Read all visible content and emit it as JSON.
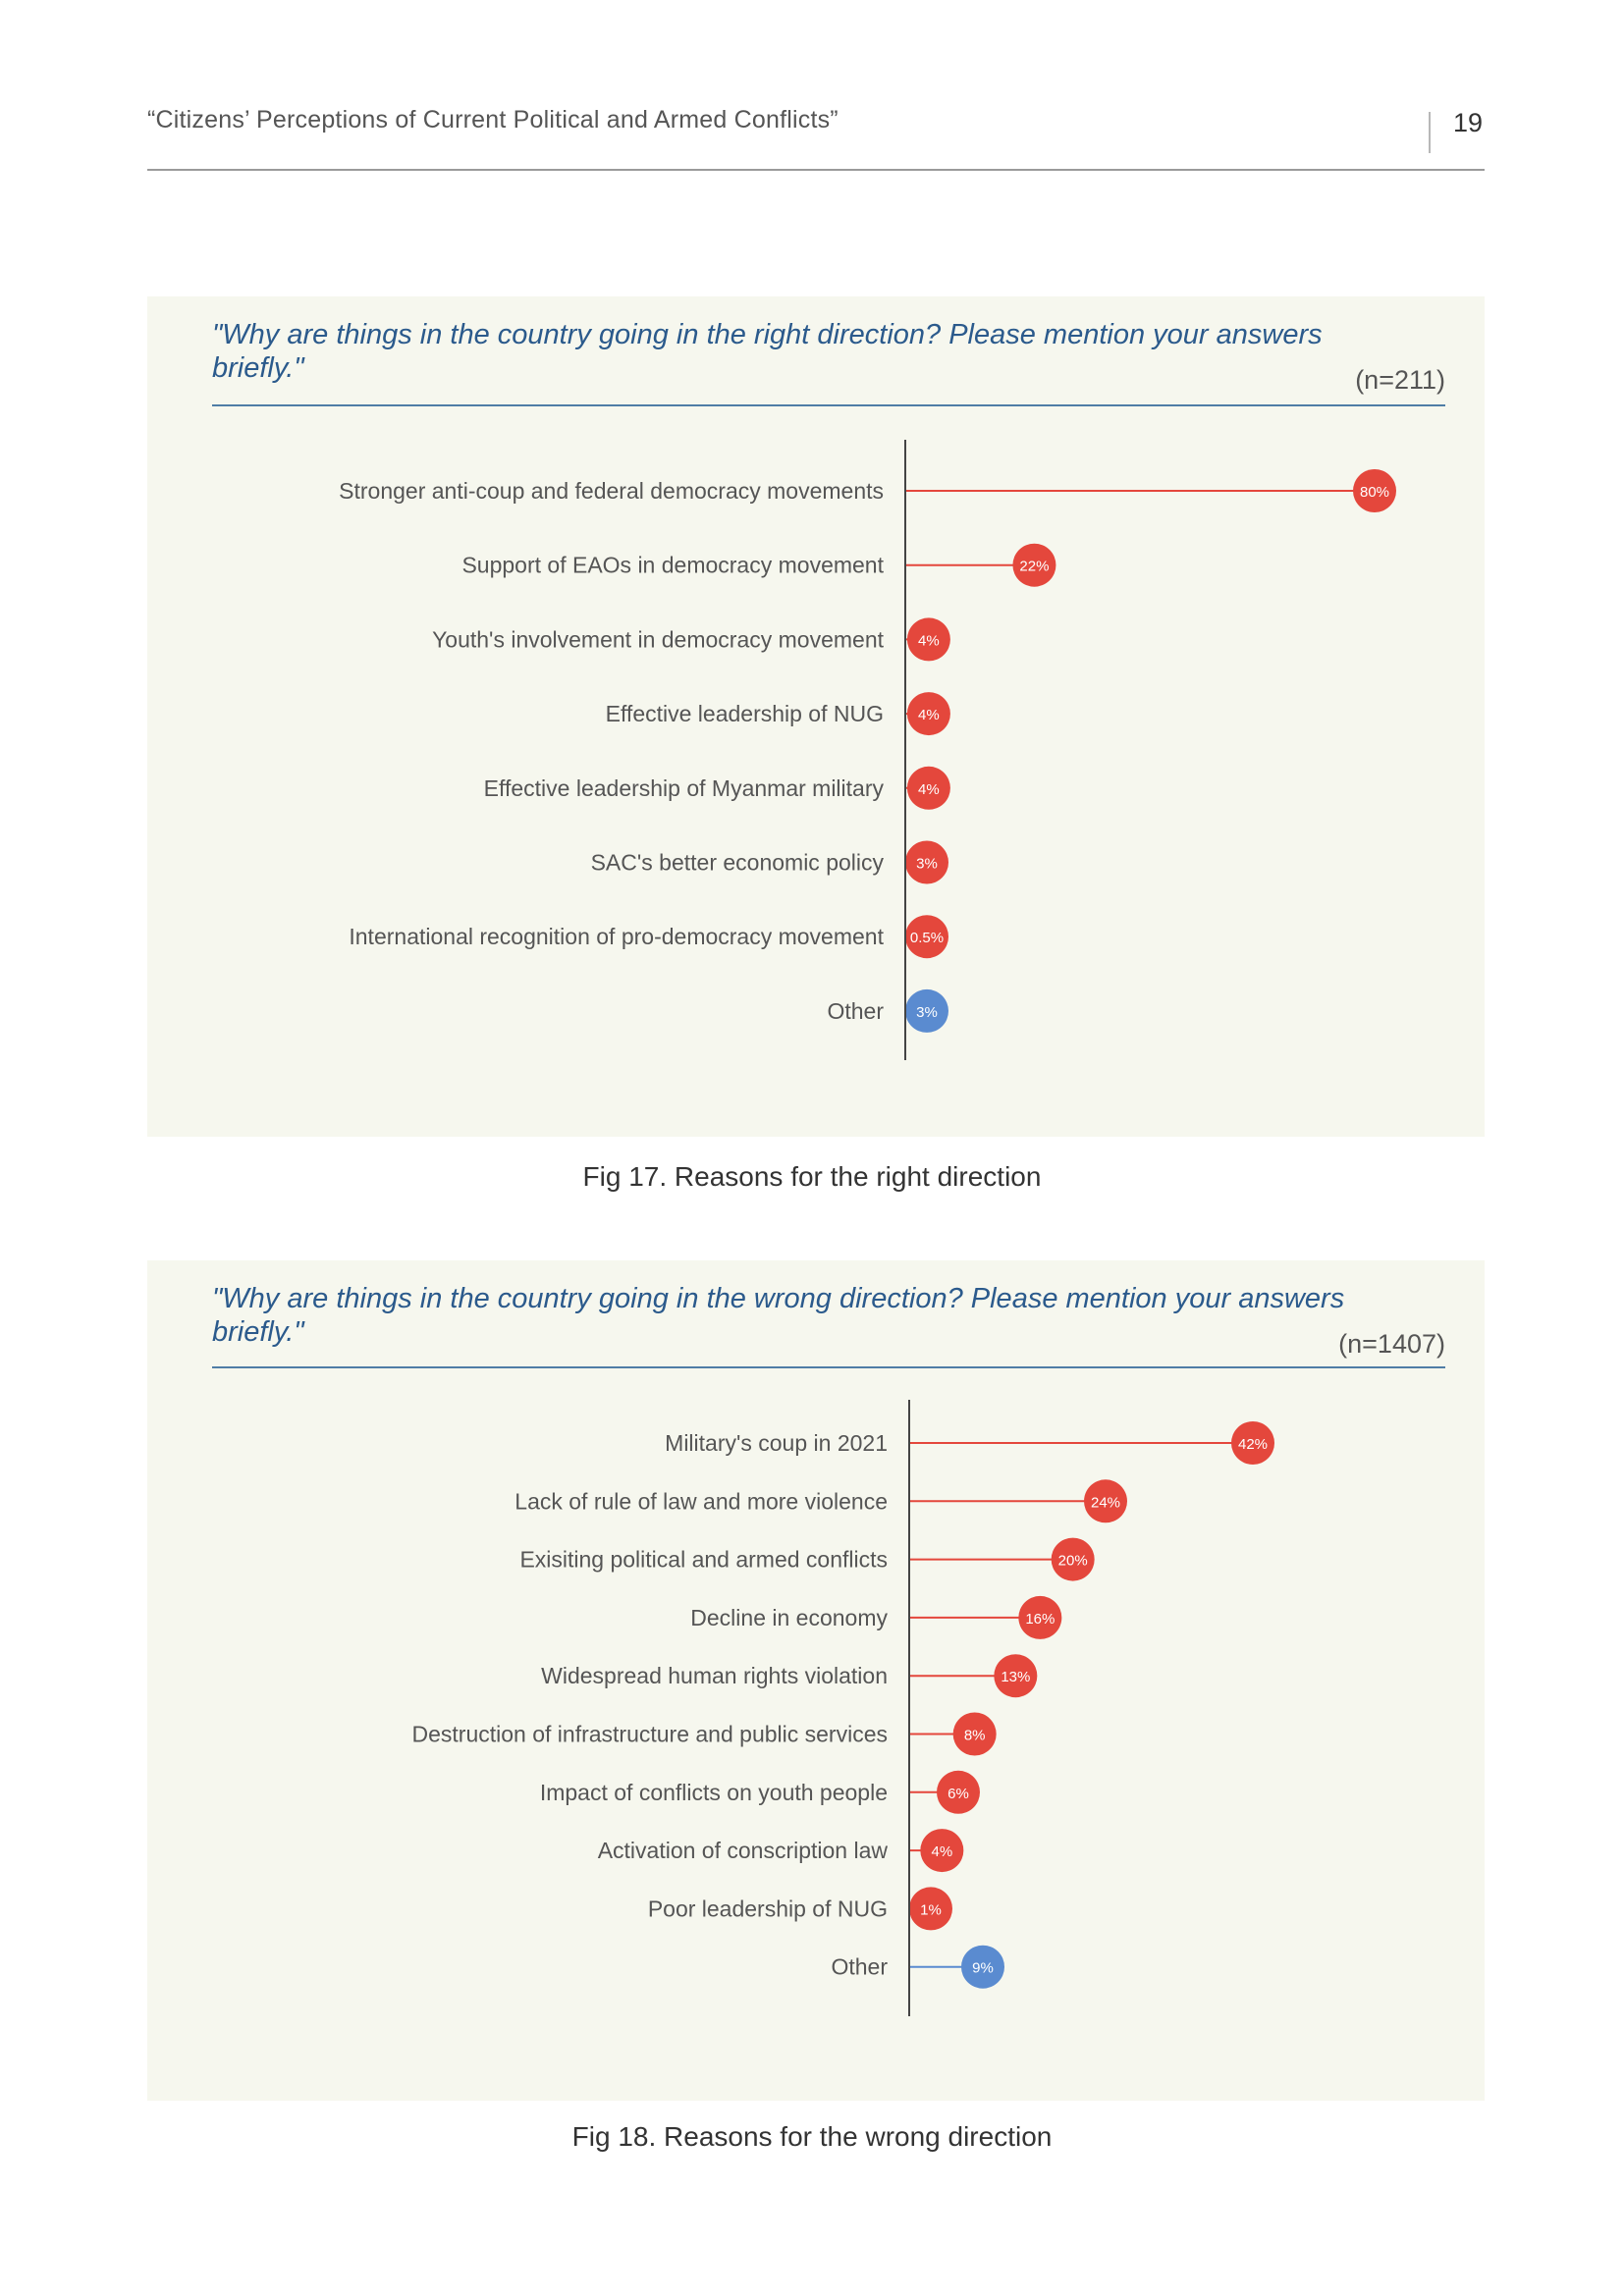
{
  "header": {
    "running_title": "“Citizens’ Perceptions of Current Political and Armed Conflicts”",
    "page_number": "19"
  },
  "figures": [
    {
      "question": "\"Why are things in the country going in the right direction? Please mention your answers briefly.\"",
      "sample_size": "(n=211)",
      "caption": "Fig 17. Reasons for the right direction"
    },
    {
      "question": "\"Why are things in the country going in the wrong direction? Please mention your answers briefly.\"",
      "sample_size": "(n=1407)",
      "caption": "Fig 18. Reasons for the wrong direction"
    }
  ],
  "colors": {
    "main": "#e4473c",
    "other": "#5a8bd0",
    "axis": "#444444",
    "label": "#555555",
    "value_text": "#ffffff"
  },
  "chart_data": [
    {
      "type": "lollipop",
      "orientation": "horizontal",
      "title": "",
      "xlabel": "",
      "ylabel": "",
      "unit": "%",
      "xlim": [
        0,
        80
      ],
      "categories": [
        "Stronger anti-coup and federal democracy movements",
        "Support of EAOs in democracy movement",
        "Youth's involvement in democracy movement",
        "Effective leadership of NUG",
        "Effective leadership of Myanmar military",
        "SAC's better economic policy",
        "International recognition of pro-democracy movement",
        "Other"
      ],
      "values": [
        80,
        22,
        4,
        4,
        4,
        3,
        0.5,
        3
      ],
      "value_labels": [
        "80%",
        "22%",
        "4%",
        "4%",
        "4%",
        "3%",
        "0.5%",
        "3%"
      ],
      "highlight": [
        false,
        false,
        false,
        false,
        false,
        false,
        false,
        true
      ],
      "grid": false,
      "legend": "none"
    },
    {
      "type": "lollipop",
      "orientation": "horizontal",
      "title": "",
      "xlabel": "",
      "ylabel": "",
      "unit": "%",
      "xlim": [
        0,
        42
      ],
      "categories": [
        "Military's coup in 2021",
        "Lack of rule of law and more violence",
        "Exisiting political and armed conflicts",
        "Decline in economy",
        "Widespread human rights violation",
        "Destruction of infrastructure and public services",
        "Impact of conflicts on youth people",
        "Activation of conscription law",
        "Poor leadership of NUG",
        "Other"
      ],
      "values": [
        42,
        24,
        20,
        16,
        13,
        8,
        6,
        4,
        1,
        9
      ],
      "value_labels": [
        "42%",
        "24%",
        "20%",
        "16%",
        "13%",
        "8%",
        "6%",
        "4%",
        "1%",
        "9%"
      ],
      "highlight": [
        false,
        false,
        false,
        false,
        false,
        false,
        false,
        false,
        false,
        true
      ],
      "grid": false,
      "legend": "none"
    }
  ]
}
